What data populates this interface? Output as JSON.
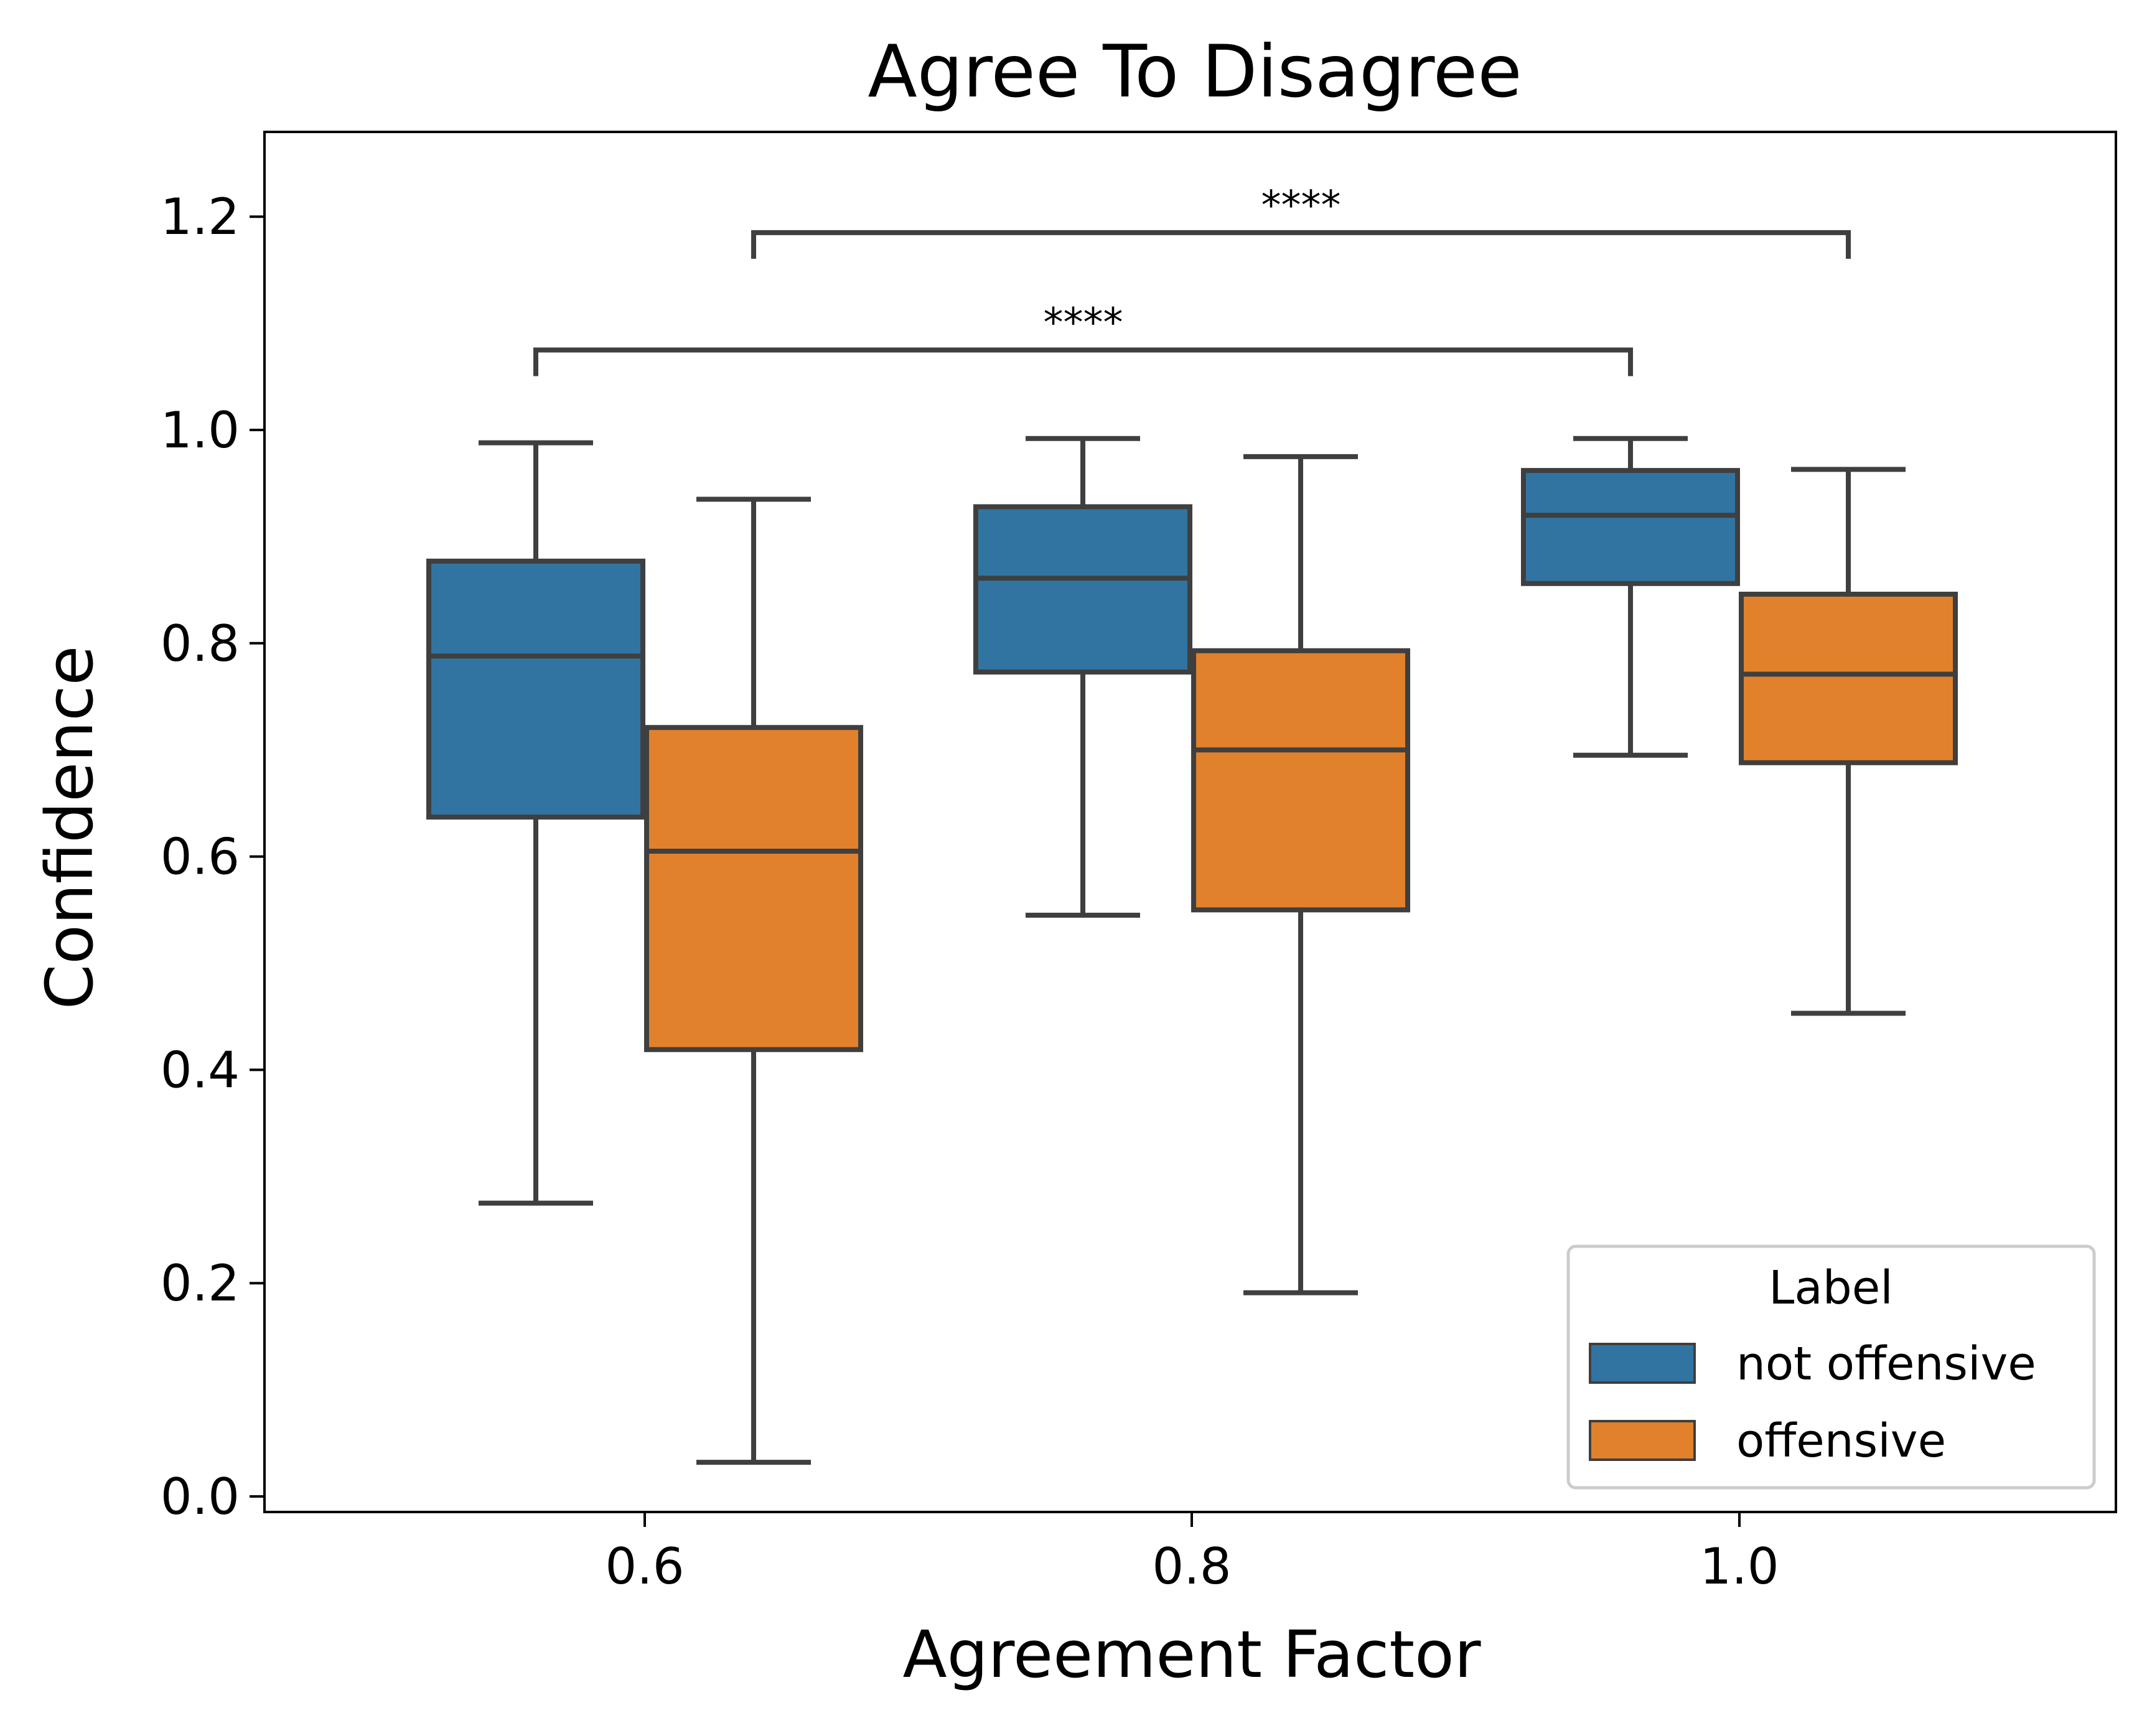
{
  "chart_data": {
    "type": "box",
    "title": "Agree To Disagree",
    "xlabel": "Agreement Factor",
    "ylabel": "Confidence",
    "categories": [
      "0.6",
      "0.8",
      "1.0"
    ],
    "ylim": [
      -0.015,
      1.28
    ],
    "yticks": [
      0.0,
      0.2,
      0.4,
      0.6,
      0.8,
      1.0,
      1.2
    ],
    "ytick_labels": [
      "0.0",
      "0.2",
      "0.4",
      "0.6",
      "0.8",
      "1.0",
      "1.2"
    ],
    "grid": false,
    "legend": {
      "title": "Label",
      "position": "lower-right"
    },
    "series": [
      {
        "name": "not offensive",
        "color": "#3274a1",
        "boxes": [
          {
            "whislo": 0.275,
            "q1": 0.637,
            "med": 0.788,
            "q3": 0.877,
            "whishi": 0.988
          },
          {
            "whislo": 0.545,
            "q1": 0.773,
            "med": 0.861,
            "q3": 0.928,
            "whishi": 0.992
          },
          {
            "whislo": 0.695,
            "q1": 0.856,
            "med": 0.92,
            "q3": 0.962,
            "whishi": 0.992
          }
        ]
      },
      {
        "name": "offensive",
        "color": "#e1812c",
        "boxes": [
          {
            "whislo": 0.032,
            "q1": 0.419,
            "med": 0.605,
            "q3": 0.721,
            "whishi": 0.935
          },
          {
            "whislo": 0.191,
            "q1": 0.55,
            "med": 0.7,
            "q3": 0.793,
            "whishi": 0.975
          },
          {
            "whislo": 0.453,
            "q1": 0.688,
            "med": 0.771,
            "q3": 0.846,
            "whishi": 0.963
          }
        ]
      }
    ],
    "annotations": [
      {
        "text": "****",
        "from": {
          "category": "0.6",
          "series": "not offensive"
        },
        "to": {
          "category": "1.0",
          "series": "not offensive"
        },
        "level": 1.075
      },
      {
        "text": "****",
        "from": {
          "category": "0.6",
          "series": "offensive"
        },
        "to": {
          "category": "1.0",
          "series": "offensive"
        },
        "level": 1.185
      }
    ]
  },
  "colors": {
    "line": "#3f3f3f",
    "not_offensive": "#3274a1",
    "offensive": "#e1812c"
  }
}
